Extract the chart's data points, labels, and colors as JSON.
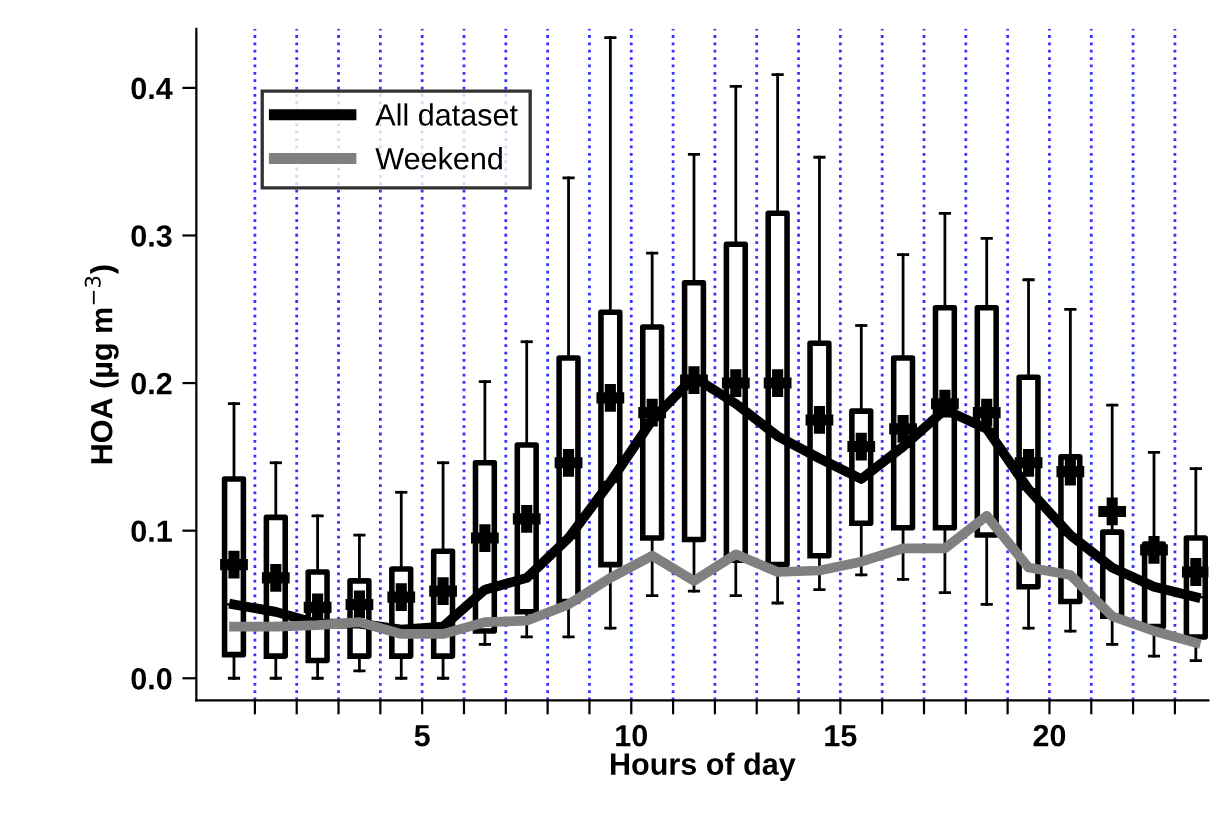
{
  "chart_data": {
    "type": "box",
    "xlabel": "Hours of day",
    "ylabel": "HOA (µg m$^{−3}$)",
    "xlim": [
      -0.4,
      23.8
    ],
    "ylim": [
      -0.015,
      0.44
    ],
    "xticks": [
      {
        "value": 1,
        "label": null
      },
      {
        "value": 2,
        "label": null
      },
      {
        "value": 3,
        "label": null
      },
      {
        "value": 4,
        "label": null
      },
      5,
      {
        "value": 6,
        "label": null
      },
      {
        "value": 7,
        "label": null
      },
      {
        "value": 8,
        "label": null
      },
      {
        "value": 9,
        "label": null
      },
      10,
      {
        "value": 11,
        "label": null
      },
      {
        "value": 12,
        "label": null
      },
      {
        "value": 13,
        "label": null
      },
      {
        "value": 14,
        "label": null
      },
      15,
      {
        "value": 16,
        "label": null
      },
      {
        "value": 17,
        "label": null
      },
      {
        "value": 18,
        "label": null
      },
      {
        "value": 19,
        "label": null
      },
      20,
      {
        "value": 21,
        "label": null
      },
      {
        "value": 22,
        "label": null
      },
      {
        "value": 23,
        "label": null
      }
    ],
    "yticks": [
      {
        "value": 0,
        "label": "0.0"
      },
      {
        "value": 0.1,
        "label": "0.1"
      },
      {
        "value": 0.2,
        "label": "0.2"
      },
      {
        "value": 0.3,
        "label": "0.3"
      },
      {
        "value": 0.4,
        "label": "0.4"
      }
    ],
    "grid": "x",
    "legend": "top left",
    "series": [
      {
        "color": "#000000",
        "x": [
          0.5,
          1.5,
          2.5,
          3.5,
          4.5,
          5.5,
          6.5,
          7.5,
          8.5,
          9.5,
          10.5,
          11.5,
          12.5,
          13.5,
          14.5,
          15.5,
          16.5,
          17.5,
          18.5,
          19.5,
          20.5,
          21.5,
          22.5,
          23.5
        ],
        "boxes": [
          {
            "low": 0.0,
            "q1": 0.016,
            "median": 0.05,
            "q3": 0.135,
            "high": 0.186,
            "mean": 0.077
          },
          {
            "low": 0.0,
            "q1": 0.015,
            "median": 0.045,
            "q3": 0.109,
            "high": 0.146,
            "mean": 0.068
          },
          {
            "low": 0.0,
            "q1": 0.012,
            "median": 0.037,
            "q3": 0.072,
            "high": 0.11,
            "mean": 0.048
          },
          {
            "low": 0.005,
            "q1": 0.015,
            "median": 0.037,
            "q3": 0.066,
            "high": 0.097,
            "mean": 0.05
          },
          {
            "low": 0.0,
            "q1": 0.015,
            "median": 0.033,
            "q3": 0.074,
            "high": 0.126,
            "mean": 0.055
          },
          {
            "low": 0.0,
            "q1": 0.015,
            "median": 0.035,
            "q3": 0.086,
            "high": 0.146,
            "mean": 0.059
          },
          {
            "low": 0.023,
            "q1": 0.032,
            "median": 0.06,
            "q3": 0.146,
            "high": 0.201,
            "mean": 0.095
          },
          {
            "low": 0.028,
            "q1": 0.045,
            "median": 0.068,
            "q3": 0.158,
            "high": 0.228,
            "mean": 0.108
          },
          {
            "low": 0.028,
            "q1": 0.052,
            "median": 0.095,
            "q3": 0.217,
            "high": 0.339,
            "mean": 0.146
          },
          {
            "low": 0.034,
            "q1": 0.077,
            "median": 0.133,
            "q3": 0.248,
            "high": 0.434,
            "mean": 0.19
          },
          {
            "low": 0.056,
            "q1": 0.095,
            "median": 0.175,
            "q3": 0.238,
            "high": 0.288,
            "mean": 0.18
          },
          {
            "low": 0.059,
            "q1": 0.094,
            "median": 0.204,
            "q3": 0.268,
            "high": 0.355,
            "mean": 0.202
          },
          {
            "low": 0.056,
            "q1": 0.08,
            "median": 0.186,
            "q3": 0.294,
            "high": 0.401,
            "mean": 0.2
          },
          {
            "low": 0.051,
            "q1": 0.077,
            "median": 0.164,
            "q3": 0.315,
            "high": 0.409,
            "mean": 0.2
          },
          {
            "low": 0.06,
            "q1": 0.083,
            "median": 0.149,
            "q3": 0.227,
            "high": 0.353,
            "mean": 0.175
          },
          {
            "low": 0.07,
            "q1": 0.105,
            "median": 0.135,
            "q3": 0.181,
            "high": 0.239,
            "mean": 0.157
          },
          {
            "low": 0.067,
            "q1": 0.102,
            "median": 0.157,
            "q3": 0.217,
            "high": 0.287,
            "mean": 0.169
          },
          {
            "low": 0.058,
            "q1": 0.102,
            "median": 0.182,
            "q3": 0.251,
            "high": 0.315,
            "mean": 0.186
          },
          {
            "low": 0.05,
            "q1": 0.097,
            "median": 0.169,
            "q3": 0.251,
            "high": 0.298,
            "mean": 0.18
          },
          {
            "low": 0.034,
            "q1": 0.062,
            "median": 0.128,
            "q3": 0.204,
            "high": 0.27,
            "mean": 0.146
          },
          {
            "low": 0.032,
            "q1": 0.052,
            "median": 0.097,
            "q3": 0.15,
            "high": 0.25,
            "mean": 0.14
          },
          {
            "low": 0.023,
            "q1": 0.042,
            "median": 0.075,
            "q3": 0.099,
            "high": 0.185,
            "mean": 0.113
          },
          {
            "low": 0.015,
            "q1": 0.035,
            "median": 0.062,
            "q3": 0.091,
            "high": 0.153,
            "mean": 0.087
          },
          {
            "low": 0.012,
            "q1": 0.028,
            "median": 0.055,
            "q3": 0.095,
            "high": 0.142,
            "mean": 0.072
          }
        ]
      },
      {
        "type": "line",
        "name": "All dataset",
        "color": "#000000",
        "x": [
          0.5,
          1.5,
          2.5,
          3.5,
          4.5,
          5.5,
          6.5,
          7.5,
          8.5,
          9.5,
          10.5,
          11.5,
          12.5,
          13.5,
          14.5,
          15.5,
          16.5,
          17.5,
          18.5,
          19.5,
          20.5,
          21.5,
          22.5,
          23.5
        ],
        "values": [
          0.05,
          0.045,
          0.037,
          0.037,
          0.033,
          0.035,
          0.06,
          0.068,
          0.095,
          0.133,
          0.175,
          0.204,
          0.186,
          0.164,
          0.149,
          0.135,
          0.157,
          0.182,
          0.169,
          0.128,
          0.097,
          0.075,
          0.062,
          0.055
        ]
      },
      {
        "type": "line",
        "name": "Weekend",
        "color": "#808080",
        "x": [
          0.5,
          1.5,
          2.5,
          3.5,
          4.5,
          5.5,
          6.5,
          7.5,
          8.5,
          9.5,
          10.5,
          11.5,
          12.5,
          13.5,
          14.5,
          15.5,
          16.5,
          17.5,
          18.5,
          19.5,
          20.5,
          21.5,
          22.5,
          23.5
        ],
        "values": [
          0.035,
          0.035,
          0.036,
          0.038,
          0.03,
          0.03,
          0.038,
          0.039,
          0.05,
          0.068,
          0.083,
          0.066,
          0.084,
          0.072,
          0.073,
          0.079,
          0.088,
          0.088,
          0.11,
          0.075,
          0.07,
          0.042,
          0.032,
          0.024
        ]
      }
    ]
  }
}
